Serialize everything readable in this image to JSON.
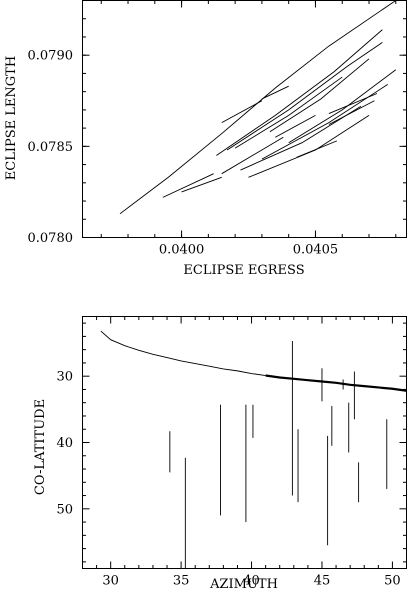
{
  "chart_data": [
    {
      "type": "line",
      "xlabel": "ECLIPSE EGRESS",
      "ylabel": "ECLIPSE LENGTH",
      "xlim": [
        0.03963,
        0.04084
      ],
      "ylim": [
        0.078,
        0.0793
      ],
      "xticks": [
        {
          "value": 0.04,
          "label": "0.0400"
        },
        {
          "value": 0.0405,
          "label": "0.0405"
        }
      ],
      "yticks": [
        {
          "value": 0.078,
          "label": "0.0780"
        },
        {
          "value": 0.0785,
          "label": "0.0785"
        },
        {
          "value": 0.079,
          "label": "0.0790"
        }
      ],
      "series": [
        {
          "x": [
            0.03977,
            0.03995,
            0.04015,
            0.04035,
            0.04055,
            0.0408
          ],
          "y": [
            0.07813,
            0.07833,
            0.07857,
            0.07882,
            0.07905,
            0.0793
          ]
        },
        {
          "x": [
            0.04013,
            0.04035,
            0.04057,
            0.04075
          ],
          "y": [
            0.07845,
            0.07867,
            0.07891,
            0.07914
          ]
        },
        {
          "x": [
            0.04017,
            0.0404,
            0.04062,
            0.04075
          ],
          "y": [
            0.07848,
            0.0787,
            0.07894,
            0.07907
          ]
        },
        {
          "x": [
            0.04015,
            0.0403
          ],
          "y": [
            0.07863,
            0.07875
          ]
        },
        {
          "x": [
            0.0403,
            0.0404
          ],
          "y": [
            0.07876,
            0.07883
          ]
        },
        {
          "x": [
            0.0402,
            0.0404,
            0.0406
          ],
          "y": [
            0.07849,
            0.07867,
            0.07888
          ]
        },
        {
          "x": [
            0.04033,
            0.04052,
            0.0407
          ],
          "y": [
            0.07858,
            0.07876,
            0.07898
          ]
        },
        {
          "x": [
            0.04022,
            0.04045,
            0.04067
          ],
          "y": [
            0.07837,
            0.07852,
            0.07872
          ]
        },
        {
          "x": [
            0.0403,
            0.04055,
            0.04077
          ],
          "y": [
            0.07843,
            0.07863,
            0.07884
          ]
        },
        {
          "x": [
            0.0404,
            0.0406,
            0.0408
          ],
          "y": [
            0.07852,
            0.0787,
            0.07892
          ]
        },
        {
          "x": [
            0.04025,
            0.0405,
            0.0407
          ],
          "y": [
            0.07833,
            0.07848,
            0.07867
          ]
        },
        {
          "x": [
            0.04055,
            0.04072
          ],
          "y": [
            0.07862,
            0.07875
          ]
        },
        {
          "x": [
            0.04043,
            0.04058
          ],
          "y": [
            0.07844,
            0.07853
          ]
        },
        {
          "x": [
            0.03993,
            0.04012
          ],
          "y": [
            0.07822,
            0.07835
          ]
        },
        {
          "x": [
            0.04,
            0.04015
          ],
          "y": [
            0.07825,
            0.07833
          ]
        },
        {
          "x": [
            0.04015,
            0.04038
          ],
          "y": [
            0.07835,
            0.07855
          ]
        },
        {
          "x": [
            0.04035,
            0.0405
          ],
          "y": [
            0.07855,
            0.07867
          ]
        },
        {
          "x": [
            0.04055,
            0.04073
          ],
          "y": [
            0.07868,
            0.07879
          ]
        }
      ]
    },
    {
      "type": "line",
      "xlabel": "AZIMUTH",
      "ylabel": "CO-LATITUDE",
      "xlim": [
        28,
        51
      ],
      "ylim": [
        59,
        21
      ],
      "xticks": [
        {
          "value": 30,
          "label": "30"
        },
        {
          "value": 35,
          "label": "35"
        },
        {
          "value": 40,
          "label": "40"
        },
        {
          "value": 45,
          "label": "45"
        },
        {
          "value": 50,
          "label": "50"
        }
      ],
      "yticks": [
        {
          "value": 30,
          "label": "30"
        },
        {
          "value": 40,
          "label": "40"
        },
        {
          "value": 50,
          "label": "50"
        }
      ],
      "curve_thin": {
        "x": [
          29.3,
          30,
          31,
          32,
          33,
          34,
          35,
          36,
          37,
          38,
          39,
          40,
          41
        ],
        "y": [
          23.2,
          24.5,
          25.4,
          26.1,
          26.7,
          27.2,
          27.7,
          28.1,
          28.5,
          28.9,
          29.2,
          29.6,
          29.9
        ]
      },
      "curve_thick": {
        "x": [
          41,
          42,
          43,
          44,
          45,
          46,
          47,
          48,
          49,
          50,
          51
        ],
        "y": [
          29.9,
          30.2,
          30.4,
          30.6,
          30.8,
          31.0,
          31.3,
          31.5,
          31.7,
          31.9,
          32.2
        ]
      },
      "error_bars": [
        {
          "x": 34.2,
          "y1": 38.3,
          "y2": 44.5
        },
        {
          "x": 35.3,
          "y1": 42.3,
          "y2": 59.0
        },
        {
          "x": 37.8,
          "y1": 34.3,
          "y2": 51.0
        },
        {
          "x": 39.6,
          "y1": 34.3,
          "y2": 52.0
        },
        {
          "x": 40.1,
          "y1": 34.3,
          "y2": 39.3
        },
        {
          "x": 42.9,
          "y1": 24.7,
          "y2": 48.0
        },
        {
          "x": 43.3,
          "y1": 38.0,
          "y2": 49.0
        },
        {
          "x": 45.0,
          "y1": 28.8,
          "y2": 33.8
        },
        {
          "x": 45.4,
          "y1": 39.0,
          "y2": 55.5
        },
        {
          "x": 45.7,
          "y1": 34.5,
          "y2": 40.5
        },
        {
          "x": 46.5,
          "y1": 30.5,
          "y2": 32.0
        },
        {
          "x": 46.9,
          "y1": 34.0,
          "y2": 41.5
        },
        {
          "x": 47.3,
          "y1": 29.3,
          "y2": 36.5
        },
        {
          "x": 47.6,
          "y1": 43.0,
          "y2": 49.0
        },
        {
          "x": 49.6,
          "y1": 36.5,
          "y2": 47.0
        }
      ]
    }
  ]
}
